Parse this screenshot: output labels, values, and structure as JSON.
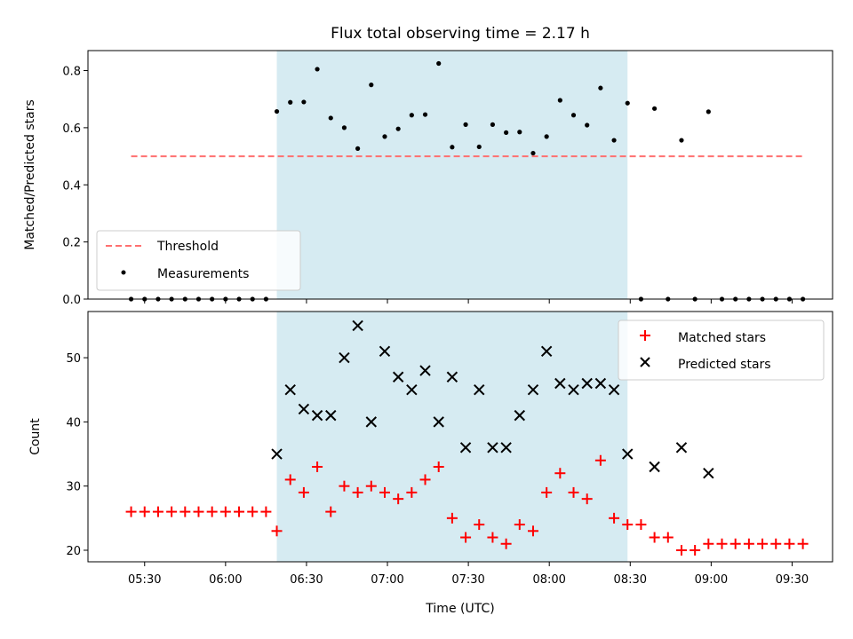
{
  "chart_data": [
    {
      "type": "scatter",
      "title": "Flux total observing time = 2.17 h",
      "xlabel": "",
      "ylabel": "Matched/Predicted stars",
      "ylim": [
        0,
        0.87
      ],
      "yticks": [
        0.0,
        0.2,
        0.4,
        0.6,
        0.8
      ],
      "ytick_labels": [
        "0.0",
        "0.2",
        "0.4",
        "0.6",
        "0.8"
      ],
      "x_is_time": true,
      "grid": false,
      "legend_position": "lower-left",
      "highlight_span": {
        "start": "06:19",
        "end": "08:29",
        "color": "#add8e6"
      },
      "series": [
        {
          "name": "Threshold",
          "kind": "dashed-line",
          "color": "#ff7070",
          "x": [
            "05:25",
            "09:34"
          ],
          "y": [
            0.5,
            0.5
          ]
        },
        {
          "name": "Measurements",
          "kind": "points",
          "color": "#000000",
          "x": [
            "05:25",
            "05:30",
            "05:35",
            "05:40",
            "05:45",
            "05:50",
            "05:55",
            "06:00",
            "06:05",
            "06:10",
            "06:15",
            "06:19",
            "06:24",
            "06:29",
            "06:34",
            "06:39",
            "06:44",
            "06:49",
            "06:54",
            "06:59",
            "07:04",
            "07:09",
            "07:14",
            "07:19",
            "07:24",
            "07:29",
            "07:34",
            "07:39",
            "07:44",
            "07:49",
            "07:54",
            "07:59",
            "08:04",
            "08:09",
            "08:14",
            "08:19",
            "08:24",
            "08:29",
            "08:34",
            "08:39",
            "08:44",
            "08:49",
            "08:54",
            "08:59",
            "09:04",
            "09:09",
            "09:14",
            "09:19",
            "09:24",
            "09:29",
            "09:34"
          ],
          "y": [
            0,
            0,
            0,
            0,
            0,
            0,
            0,
            0,
            0,
            0,
            0,
            0.657,
            0.689,
            0.69,
            0.805,
            0.634,
            0.6,
            0.527,
            0.75,
            0.569,
            0.596,
            0.644,
            0.646,
            0.825,
            0.532,
            0.611,
            0.533,
            0.611,
            0.583,
            0.585,
            0.511,
            0.569,
            0.696,
            0.644,
            0.609,
            0.739,
            0.556,
            0.686,
            0,
            0.667,
            0,
            0.556,
            0,
            0.656,
            0,
            0,
            0,
            0,
            0,
            0,
            0
          ]
        }
      ]
    },
    {
      "type": "scatter",
      "title": "",
      "xlabel": "Time (UTC)",
      "ylabel": "Count",
      "ylim": [
        18.2,
        57.2
      ],
      "yticks": [
        20,
        30,
        40,
        50
      ],
      "ytick_labels": [
        "20",
        "30",
        "40",
        "50"
      ],
      "xlim": [
        "05:09",
        "09:45"
      ],
      "xticks": [
        "05:30",
        "06:00",
        "06:30",
        "07:00",
        "07:30",
        "08:00",
        "08:30",
        "09:00",
        "09:30"
      ],
      "x_is_time": true,
      "grid": false,
      "legend_position": "top-right",
      "highlight_span": {
        "start": "06:19",
        "end": "08:29",
        "color": "#add8e6"
      },
      "series": [
        {
          "name": "Matched stars",
          "marker": "plus",
          "color": "#ff0000",
          "x": [
            "05:25",
            "05:30",
            "05:35",
            "05:40",
            "05:45",
            "05:50",
            "05:55",
            "06:00",
            "06:05",
            "06:10",
            "06:15",
            "06:19",
            "06:24",
            "06:29",
            "06:34",
            "06:39",
            "06:44",
            "06:49",
            "06:54",
            "06:59",
            "07:04",
            "07:09",
            "07:14",
            "07:19",
            "07:24",
            "07:29",
            "07:34",
            "07:39",
            "07:44",
            "07:49",
            "07:54",
            "07:59",
            "08:04",
            "08:09",
            "08:14",
            "08:19",
            "08:24",
            "08:29",
            "08:34",
            "08:39",
            "08:44",
            "08:49",
            "08:54",
            "08:59",
            "09:04",
            "09:09",
            "09:14",
            "09:19",
            "09:24",
            "09:29",
            "09:34"
          ],
          "y": [
            26,
            26,
            26,
            26,
            26,
            26,
            26,
            26,
            26,
            26,
            26,
            23,
            31,
            29,
            33,
            26,
            30,
            29,
            30,
            29,
            28,
            29,
            31,
            33,
            25,
            22,
            24,
            22,
            21,
            24,
            23,
            29,
            32,
            29,
            28,
            34,
            25,
            24,
            24,
            22,
            22,
            20,
            20,
            21,
            21,
            21,
            21,
            21,
            21,
            21,
            21
          ]
        },
        {
          "name": "Predicted stars",
          "marker": "x",
          "color": "#000000",
          "x": [
            "06:19",
            "06:24",
            "06:29",
            "06:34",
            "06:39",
            "06:44",
            "06:49",
            "06:54",
            "06:59",
            "07:04",
            "07:09",
            "07:14",
            "07:19",
            "07:24",
            "07:29",
            "07:34",
            "07:39",
            "07:44",
            "07:49",
            "07:54",
            "07:59",
            "08:04",
            "08:09",
            "08:14",
            "08:19",
            "08:24",
            "08:29",
            "08:39",
            "08:49",
            "08:59"
          ],
          "y": [
            35,
            45,
            42,
            41,
            41,
            50,
            55,
            40,
            51,
            47,
            45,
            48,
            40,
            47,
            36,
            45,
            36,
            36,
            41,
            45,
            51,
            46,
            45,
            46,
            46,
            45,
            35,
            33,
            36,
            32
          ]
        }
      ]
    }
  ]
}
